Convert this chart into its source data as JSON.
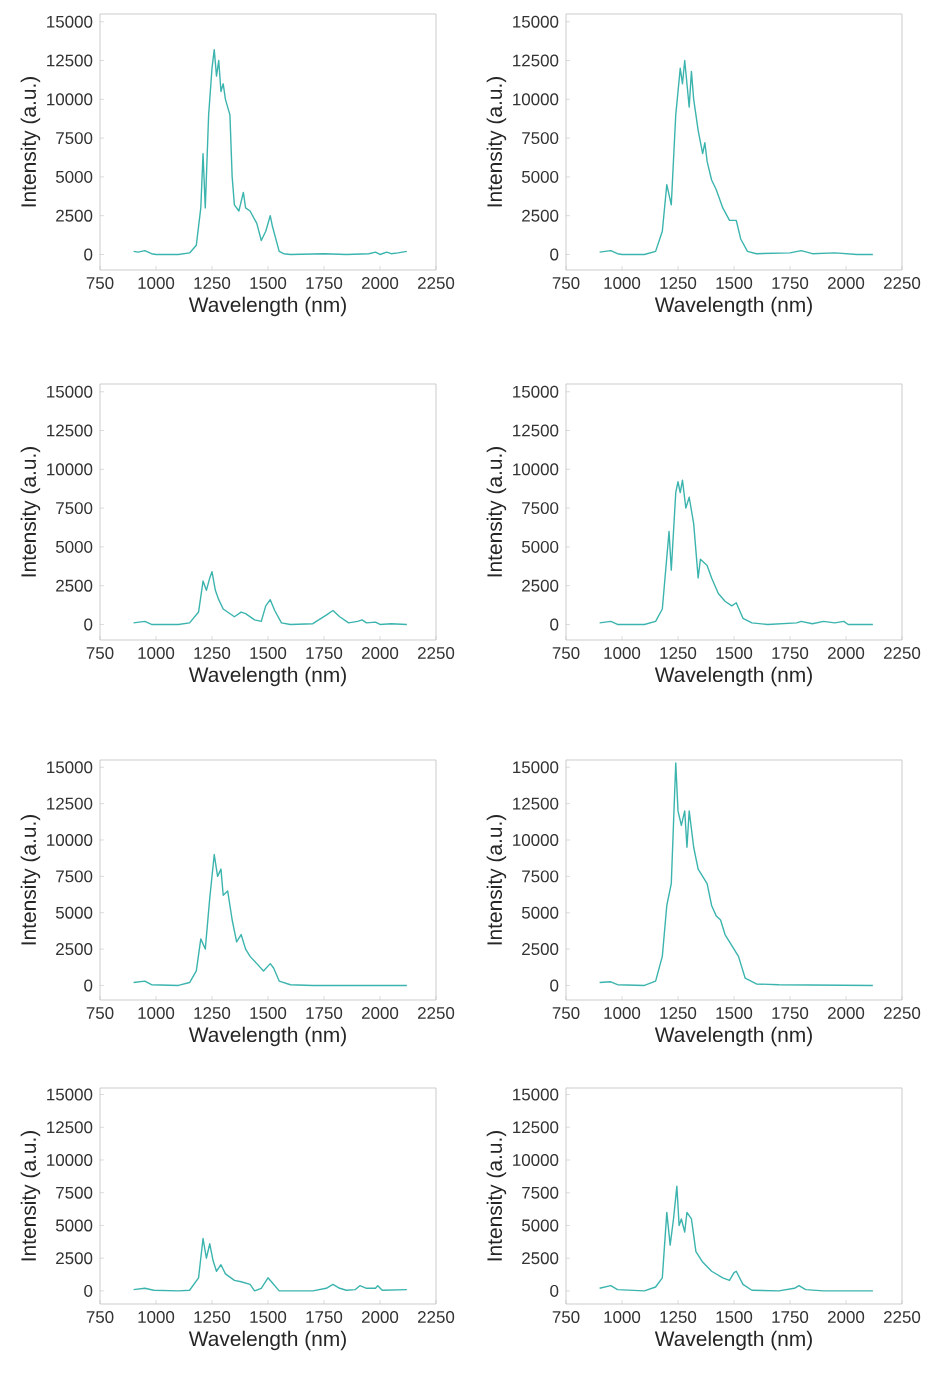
{
  "chart_data": [
    {
      "type": "line",
      "xlabel": "Wavelength (nm)",
      "ylabel": "Intensity (a.u.)",
      "color": "#3cb4ae",
      "xlim": [
        750,
        2250
      ],
      "ylim": [
        -1000,
        15500
      ],
      "xticks": [
        750,
        1000,
        1250,
        1500,
        1750,
        2000,
        2250
      ],
      "yticks": [
        0,
        2500,
        5000,
        7500,
        10000,
        12500,
        15000
      ],
      "x": [
        900,
        920,
        950,
        980,
        1000,
        1100,
        1150,
        1180,
        1200,
        1210,
        1220,
        1235,
        1250,
        1260,
        1270,
        1280,
        1290,
        1300,
        1310,
        1320,
        1330,
        1340,
        1350,
        1370,
        1390,
        1400,
        1420,
        1450,
        1470,
        1490,
        1510,
        1520,
        1550,
        1570,
        1600,
        1750,
        1850,
        1950,
        1980,
        2000,
        2030,
        2050,
        2080,
        2120
      ],
      "values": [
        200,
        150,
        250,
        50,
        0,
        0,
        100,
        600,
        3000,
        6500,
        3000,
        9000,
        12000,
        13200,
        11500,
        12500,
        10500,
        11000,
        10000,
        9500,
        9000,
        5000,
        3200,
        2800,
        4000,
        3000,
        2800,
        2000,
        900,
        1500,
        2500,
        1800,
        200,
        50,
        0,
        50,
        0,
        50,
        150,
        0,
        150,
        50,
        100,
        200
      ]
    },
    {
      "type": "line",
      "xlabel": "Wavelength (nm)",
      "ylabel": "Intensity (a.u.)",
      "color": "#3cb4ae",
      "xlim": [
        750,
        2250
      ],
      "ylim": [
        -1000,
        15500
      ],
      "xticks": [
        750,
        1000,
        1250,
        1500,
        1750,
        2000,
        2250
      ],
      "yticks": [
        0,
        2500,
        5000,
        7500,
        10000,
        12500,
        15000
      ],
      "x": [
        900,
        950,
        980,
        1000,
        1100,
        1150,
        1180,
        1200,
        1220,
        1240,
        1260,
        1270,
        1280,
        1300,
        1310,
        1320,
        1340,
        1360,
        1370,
        1380,
        1400,
        1420,
        1450,
        1480,
        1510,
        1530,
        1560,
        1600,
        1750,
        1800,
        1850,
        1950,
        2050,
        2120
      ],
      "values": [
        150,
        250,
        50,
        0,
        0,
        200,
        1500,
        4500,
        3200,
        9000,
        12000,
        11000,
        12500,
        9500,
        11800,
        10000,
        8000,
        6500,
        7200,
        6000,
        4800,
        4200,
        3000,
        2200,
        2200,
        1000,
        200,
        50,
        100,
        250,
        50,
        100,
        0,
        0
      ]
    },
    {
      "type": "line",
      "xlabel": "Wavelength (nm)",
      "ylabel": "Intensity (a.u.)",
      "color": "#3cb4ae",
      "xlim": [
        750,
        2250
      ],
      "ylim": [
        -1000,
        15500
      ],
      "xticks": [
        750,
        1000,
        1250,
        1500,
        1750,
        2000,
        2250
      ],
      "yticks": [
        0,
        2500,
        5000,
        7500,
        10000,
        12500,
        15000
      ],
      "x": [
        900,
        950,
        980,
        1100,
        1150,
        1190,
        1210,
        1225,
        1240,
        1250,
        1265,
        1280,
        1300,
        1350,
        1380,
        1400,
        1440,
        1470,
        1490,
        1510,
        1530,
        1560,
        1600,
        1700,
        1760,
        1790,
        1820,
        1860,
        1900,
        1920,
        1940,
        1980,
        2000,
        2050,
        2120
      ],
      "values": [
        100,
        200,
        0,
        0,
        100,
        800,
        2800,
        2200,
        3000,
        3400,
        2200,
        1600,
        1000,
        500,
        800,
        700,
        300,
        200,
        1200,
        1600,
        900,
        100,
        0,
        50,
        600,
        900,
        500,
        100,
        200,
        300,
        100,
        150,
        0,
        50,
        0
      ]
    },
    {
      "type": "line",
      "xlabel": "Wavelength (nm)",
      "ylabel": "Intensity (a.u.)",
      "color": "#3cb4ae",
      "xlim": [
        750,
        2250
      ],
      "ylim": [
        -1000,
        15500
      ],
      "xticks": [
        750,
        1000,
        1250,
        1500,
        1750,
        2000,
        2250
      ],
      "yticks": [
        0,
        2500,
        5000,
        7500,
        10000,
        12500,
        15000
      ],
      "x": [
        900,
        950,
        980,
        1100,
        1150,
        1180,
        1210,
        1220,
        1240,
        1250,
        1260,
        1270,
        1285,
        1300,
        1320,
        1340,
        1350,
        1380,
        1400,
        1430,
        1460,
        1490,
        1510,
        1540,
        1580,
        1650,
        1780,
        1800,
        1850,
        1900,
        1950,
        1990,
        2010,
        2120
      ],
      "values": [
        100,
        200,
        0,
        0,
        200,
        1000,
        6000,
        3500,
        8500,
        9200,
        8500,
        9300,
        7500,
        8200,
        6500,
        3000,
        4200,
        3800,
        3000,
        2000,
        1500,
        1200,
        1400,
        400,
        100,
        0,
        100,
        200,
        50,
        200,
        100,
        200,
        0,
        0
      ]
    },
    {
      "type": "line",
      "xlabel": "Wavelength (nm)",
      "ylabel": "Intensity (a.u.)",
      "color": "#3cb4ae",
      "xlim": [
        750,
        2250
      ],
      "ylim": [
        -1000,
        15500
      ],
      "xticks": [
        750,
        1000,
        1250,
        1500,
        1750,
        2000,
        2250
      ],
      "yticks": [
        0,
        2500,
        5000,
        7500,
        10000,
        12500,
        15000
      ],
      "x": [
        900,
        950,
        980,
        1100,
        1150,
        1180,
        1200,
        1220,
        1240,
        1260,
        1275,
        1290,
        1300,
        1320,
        1340,
        1360,
        1380,
        1400,
        1420,
        1450,
        1480,
        1510,
        1525,
        1550,
        1600,
        1700,
        2120
      ],
      "values": [
        200,
        300,
        50,
        0,
        200,
        1000,
        3200,
        2500,
        6000,
        9000,
        7500,
        8000,
        6200,
        6500,
        4500,
        3000,
        3500,
        2500,
        2000,
        1500,
        1000,
        1500,
        1200,
        300,
        50,
        0,
        0
      ]
    },
    {
      "type": "line",
      "xlabel": "Wavelength (nm)",
      "ylabel": "Intensity (a.u.)",
      "color": "#3cb4ae",
      "xlim": [
        750,
        2250
      ],
      "ylim": [
        -1000,
        15500
      ],
      "xticks": [
        750,
        1000,
        1250,
        1500,
        1750,
        2000,
        2250
      ],
      "yticks": [
        0,
        2500,
        5000,
        7500,
        10000,
        12500,
        15000
      ],
      "x": [
        900,
        950,
        980,
        1100,
        1150,
        1180,
        1200,
        1220,
        1240,
        1250,
        1265,
        1280,
        1290,
        1300,
        1320,
        1340,
        1360,
        1380,
        1400,
        1420,
        1440,
        1460,
        1480,
        1500,
        1520,
        1550,
        1600,
        1700,
        2120
      ],
      "values": [
        200,
        250,
        50,
        0,
        300,
        2000,
        5500,
        7000,
        15300,
        12000,
        11000,
        12000,
        9500,
        12000,
        9500,
        8000,
        7500,
        7000,
        5500,
        4800,
        4500,
        3500,
        3000,
        2500,
        2000,
        500,
        100,
        50,
        0
      ]
    },
    {
      "type": "line",
      "xlabel": "Wavelength (nm)",
      "ylabel": "Intensity (a.u.)",
      "color": "#3cb4ae",
      "xlim": [
        750,
        2250
      ],
      "ylim": [
        -1000,
        15500
      ],
      "xticks": [
        750,
        1000,
        1250,
        1500,
        1750,
        2000,
        2250
      ],
      "yticks": [
        0,
        2500,
        5000,
        7500,
        10000,
        12500,
        15000
      ],
      "x": [
        900,
        950,
        990,
        1100,
        1150,
        1190,
        1210,
        1225,
        1240,
        1255,
        1270,
        1290,
        1310,
        1350,
        1380,
        1420,
        1440,
        1470,
        1500,
        1520,
        1550,
        1700,
        1760,
        1790,
        1820,
        1850,
        1890,
        1910,
        1940,
        1980,
        1990,
        2010,
        2120
      ],
      "values": [
        100,
        200,
        50,
        0,
        50,
        1000,
        4000,
        2500,
        3600,
        2300,
        1500,
        2000,
        1300,
        800,
        700,
        500,
        0,
        200,
        1000,
        600,
        0,
        0,
        200,
        500,
        200,
        50,
        100,
        400,
        200,
        200,
        400,
        50,
        100
      ]
    },
    {
      "type": "line",
      "xlabel": "Wavelength (nm)",
      "ylabel": "Intensity (a.u.)",
      "color": "#3cb4ae",
      "xlim": [
        750,
        2250
      ],
      "ylim": [
        -1000,
        15500
      ],
      "xticks": [
        750,
        1000,
        1250,
        1500,
        1750,
        2000,
        2250
      ],
      "yticks": [
        0,
        2500,
        5000,
        7500,
        10000,
        12500,
        15000
      ],
      "x": [
        900,
        950,
        980,
        1100,
        1150,
        1180,
        1200,
        1215,
        1230,
        1245,
        1255,
        1265,
        1280,
        1290,
        1310,
        1330,
        1360,
        1400,
        1450,
        1480,
        1500,
        1510,
        1540,
        1580,
        1700,
        1770,
        1790,
        1820,
        1900,
        2120
      ],
      "values": [
        200,
        400,
        100,
        0,
        300,
        1000,
        6000,
        3500,
        5500,
        8000,
        5000,
        5500,
        4500,
        6000,
        5500,
        3000,
        2200,
        1500,
        1000,
        800,
        1400,
        1500,
        500,
        50,
        0,
        200,
        400,
        100,
        0,
        0
      ]
    }
  ]
}
